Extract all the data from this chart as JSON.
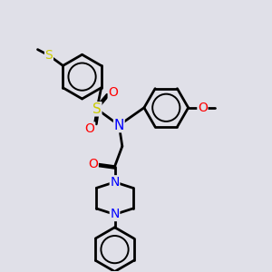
{
  "background_color": "#e0e0e8",
  "bond_color": "#000000",
  "bond_width": 2.0,
  "figsize": [
    3.0,
    3.0
  ],
  "dpi": 100,
  "colors": {
    "N": "#0000ff",
    "O": "#ff0000",
    "S": "#cccc00",
    "C": "#000000"
  }
}
